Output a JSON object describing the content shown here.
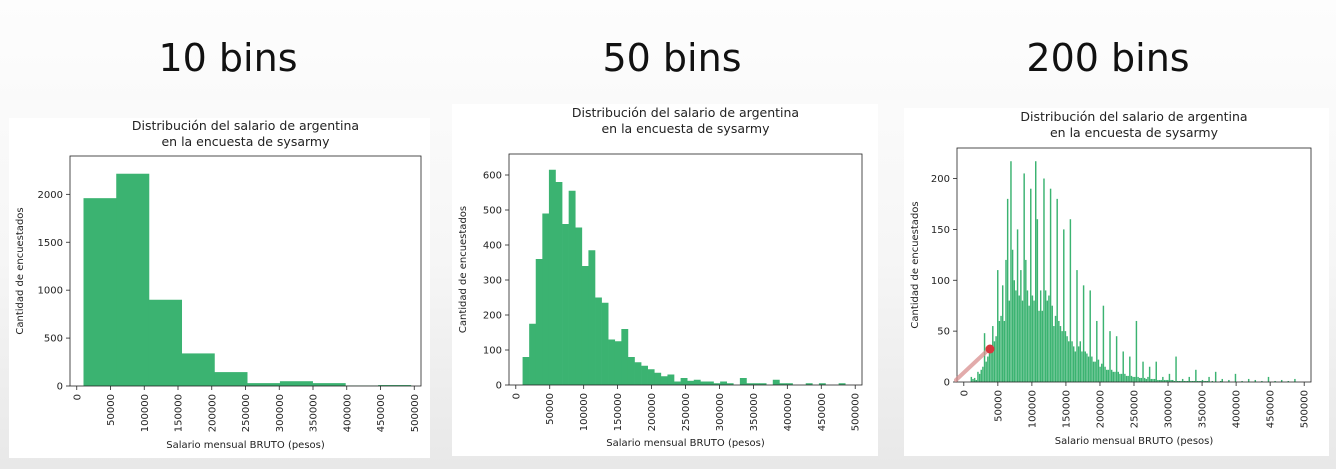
{
  "headings": [
    "10 bins",
    "50 bins",
    "200 bins"
  ],
  "chart_data": [
    {
      "type": "bar",
      "title": [
        "Distribución del salario de argentina",
        "en la encuesta de sysarmy"
      ],
      "xlabel": "Salario mensual BRUTO (pesos)",
      "ylabel": "Cantidad de encuestados",
      "xlim": [
        -10000,
        510000
      ],
      "ylim": [
        0,
        2400
      ],
      "xticks": [
        "0",
        "50000",
        "100000",
        "150000",
        "200000",
        "250000",
        "300000",
        "350000",
        "400000",
        "450000",
        "500000"
      ],
      "xtick_values": [
        0,
        50000,
        100000,
        150000,
        200000,
        250000,
        300000,
        350000,
        400000,
        450000,
        500000
      ],
      "yticks": [
        "0",
        "500",
        "1000",
        "1500",
        "2000"
      ],
      "ytick_values": [
        0,
        500,
        1000,
        1500,
        2000
      ],
      "bin_start": 10000,
      "bin_width": 48500,
      "values": [
        1960,
        2215,
        900,
        340,
        145,
        30,
        50,
        30,
        5,
        10
      ],
      "color": "#3bb371"
    },
    {
      "type": "bar",
      "title": [
        "Distribución del salario de argentina",
        "en la encuesta de sysarmy"
      ],
      "xlabel": "Salario mensual BRUTO (pesos)",
      "ylabel": "Cantidad de encuestados",
      "xlim": [
        -10000,
        510000
      ],
      "ylim": [
        0,
        660
      ],
      "xticks": [
        "0",
        "50000",
        "100000",
        "150000",
        "200000",
        "250000",
        "300000",
        "350000",
        "400000",
        "450000",
        "500000"
      ],
      "xtick_values": [
        0,
        50000,
        100000,
        150000,
        200000,
        250000,
        300000,
        350000,
        400000,
        450000,
        500000
      ],
      "yticks": [
        "0",
        "100",
        "200",
        "300",
        "400",
        "500",
        "600"
      ],
      "ytick_values": [
        0,
        100,
        200,
        300,
        400,
        500,
        600
      ],
      "bin_start": 10000,
      "bin_width": 9700,
      "values": [
        80,
        175,
        360,
        490,
        615,
        580,
        460,
        555,
        450,
        340,
        385,
        250,
        235,
        130,
        125,
        160,
        80,
        65,
        55,
        45,
        35,
        25,
        30,
        10,
        20,
        12,
        15,
        10,
        10,
        5,
        10,
        5,
        0,
        20,
        5,
        5,
        5,
        0,
        15,
        5,
        5,
        0,
        0,
        5,
        0,
        5,
        0,
        0,
        5,
        0
      ],
      "color": "#3bb371"
    },
    {
      "type": "bar",
      "title": [
        "Distribución del salario de argentina",
        "en la encuesta de sysarmy"
      ],
      "xlabel": "Salario mensual BRUTO (pesos)",
      "ylabel": "Cantidad de encuestados",
      "xlim": [
        -10000,
        510000
      ],
      "ylim": [
        0,
        230
      ],
      "xticks": [
        "0",
        "50000",
        "100000",
        "150000",
        "200000",
        "250000",
        "300000",
        "350000",
        "400000",
        "450000",
        "500000"
      ],
      "xtick_values": [
        0,
        50000,
        100000,
        150000,
        200000,
        250000,
        300000,
        350000,
        400000,
        450000,
        500000
      ],
      "yticks": [
        "0",
        "50",
        "100",
        "150",
        "200"
      ],
      "ytick_values": [
        0,
        50,
        100,
        150,
        200
      ],
      "bin_start": 10000,
      "bin_width": 2425,
      "values": [
        5,
        3,
        4,
        2,
        10,
        8,
        12,
        15,
        48,
        20,
        25,
        30,
        35,
        55,
        40,
        45,
        110,
        60,
        65,
        95,
        60,
        120,
        180,
        80,
        217,
        130,
        100,
        90,
        150,
        85,
        110,
        80,
        205,
        120,
        90,
        75,
        190,
        85,
        80,
        217,
        160,
        70,
        90,
        70,
        200,
        90,
        80,
        85,
        190,
        75,
        55,
        65,
        180,
        60,
        55,
        50,
        150,
        50,
        45,
        40,
        160,
        40,
        35,
        30,
        110,
        35,
        40,
        30,
        95,
        30,
        28,
        25,
        90,
        25,
        20,
        20,
        60,
        22,
        15,
        18,
        75,
        15,
        12,
        12,
        50,
        12,
        10,
        10,
        45,
        10,
        8,
        8,
        30,
        8,
        6,
        6,
        25,
        6,
        5,
        5,
        60,
        5,
        4,
        4,
        20,
        4,
        3,
        5,
        15,
        3,
        3,
        3,
        20,
        2,
        2,
        2,
        5,
        2,
        2,
        2,
        8,
        2,
        2,
        1,
        25,
        1,
        1,
        1,
        3,
        1,
        1,
        1,
        5,
        1,
        1,
        1,
        12,
        1,
        1,
        1,
        2,
        1,
        1,
        1,
        5,
        0,
        1,
        0,
        10,
        0,
        0,
        1,
        3,
        0,
        0,
        0,
        2,
        0,
        0,
        0,
        8,
        0,
        0,
        0,
        1,
        0,
        0,
        0,
        3,
        0,
        0,
        0,
        2,
        0,
        0,
        0,
        1,
        0,
        0,
        0,
        5,
        0,
        0,
        0,
        1,
        0,
        0,
        0,
        2,
        0,
        0,
        0,
        1,
        0,
        0,
        0,
        3,
        0,
        0,
        0
      ],
      "color": "#3bb371"
    }
  ]
}
